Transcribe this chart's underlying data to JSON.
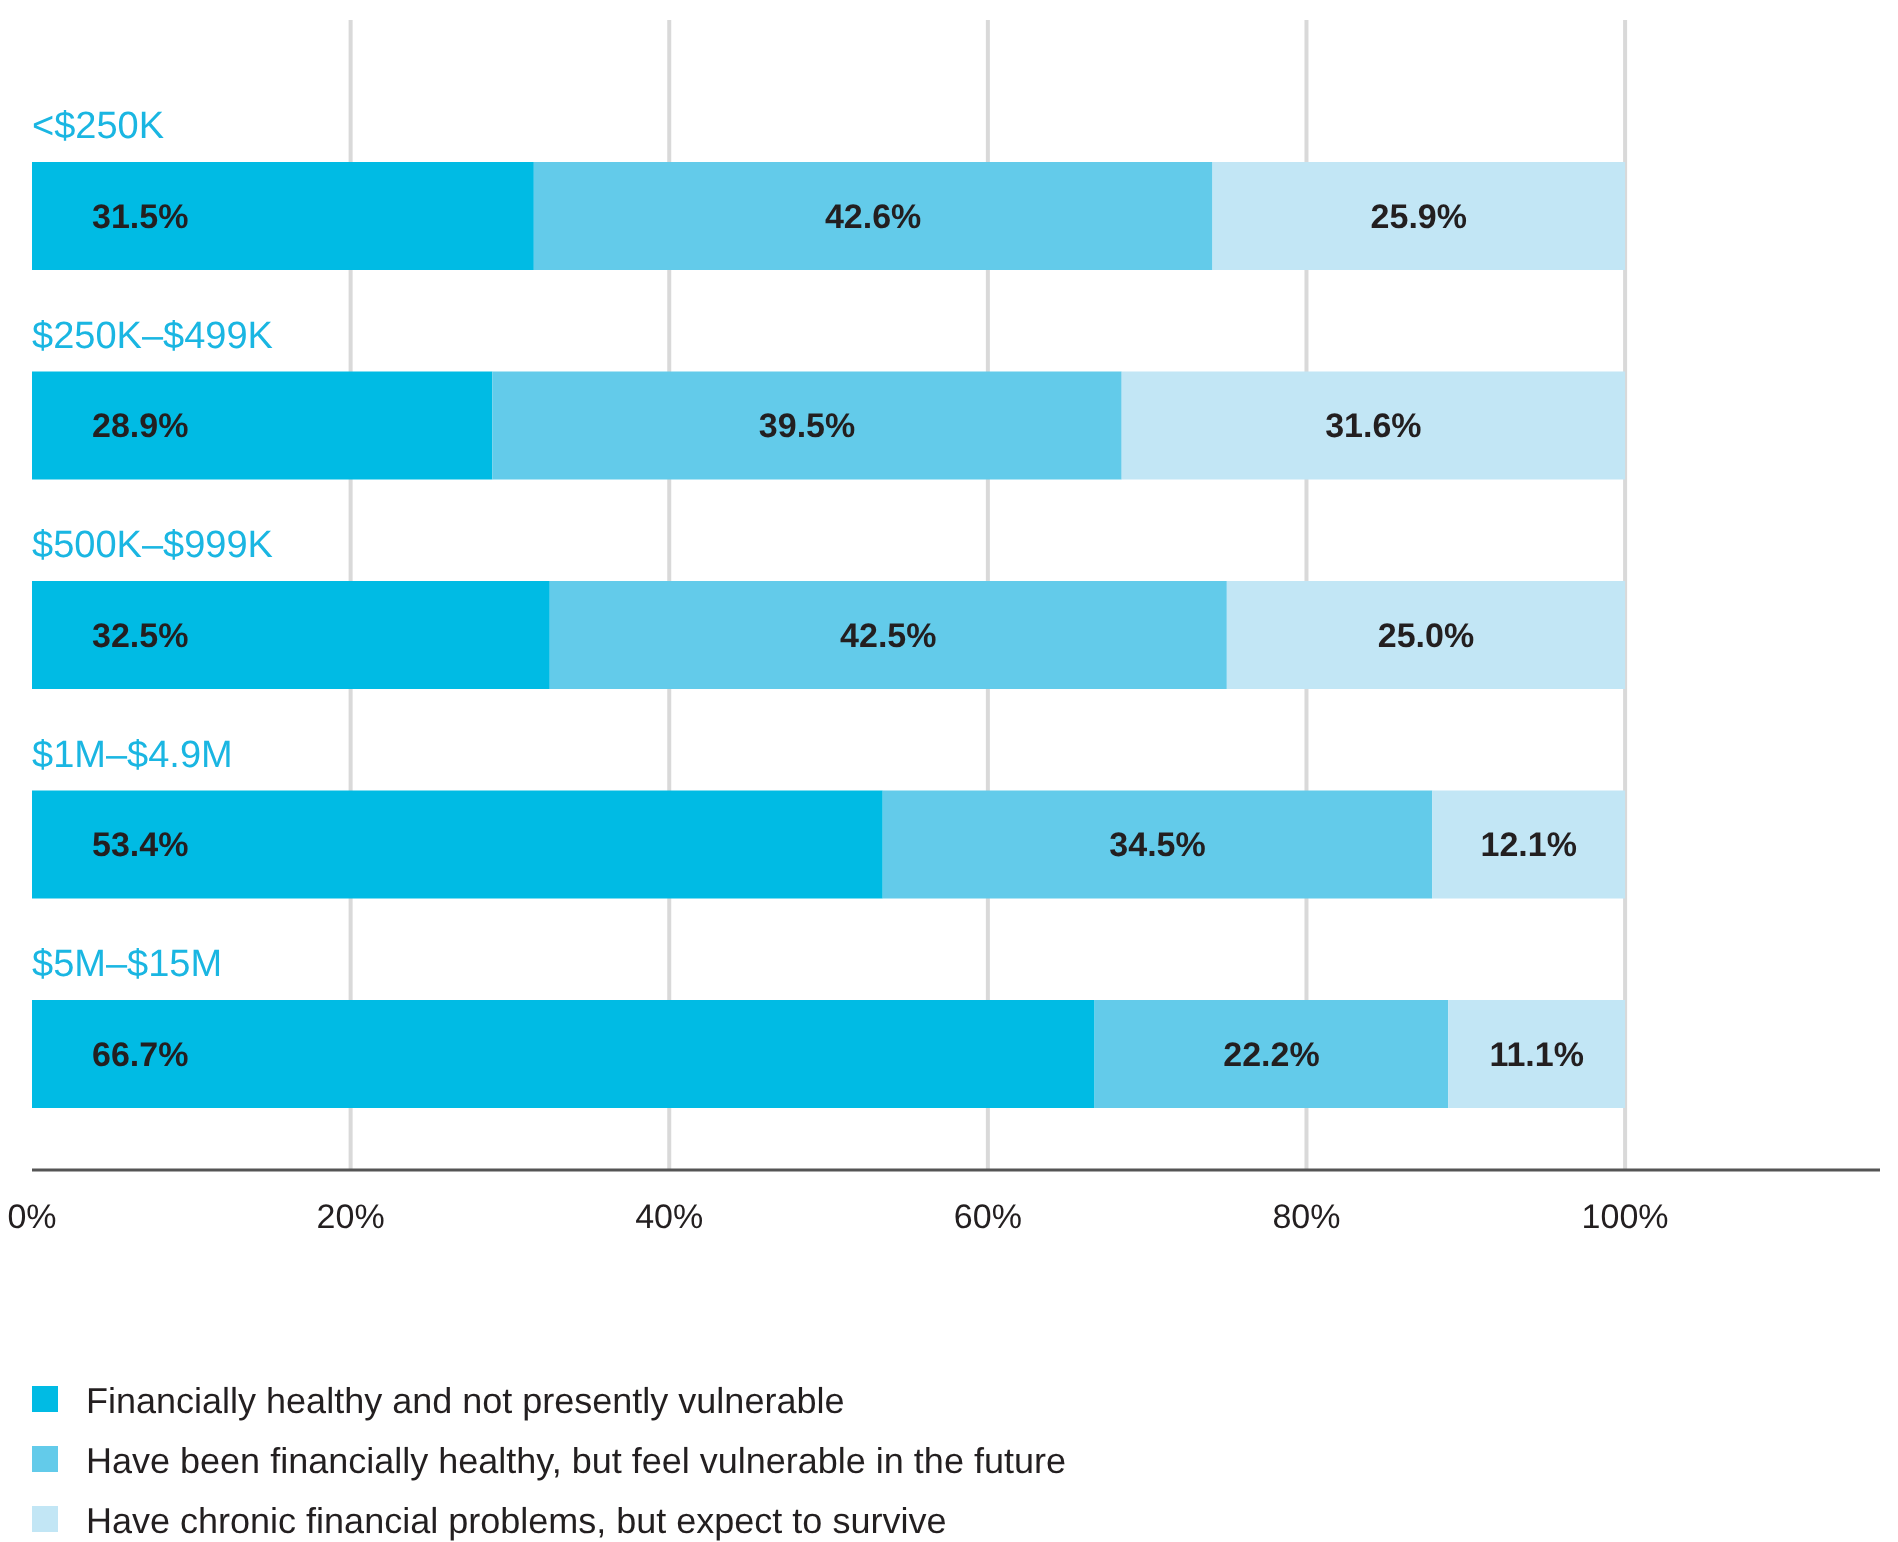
{
  "chart_data": {
    "type": "bar",
    "orientation": "horizontal",
    "stacked": true,
    "categories": [
      "<$250K",
      "$250K–$499K",
      "$500K–$999K",
      "$1M–$4.9M",
      "$5M–$15M"
    ],
    "series": [
      {
        "name": "Financially healthy and not presently vulnerable",
        "color": "#00bbe4",
        "values": [
          31.5,
          28.9,
          32.5,
          53.4,
          66.7
        ],
        "value_labels": [
          "31.5%",
          "28.9%",
          "32.5%",
          "53.4%",
          "66.7%"
        ]
      },
      {
        "name": "Have been financially healthy, but feel vulnerable in the future",
        "color": "#63cbea",
        "values": [
          42.6,
          39.5,
          42.5,
          34.5,
          22.2
        ],
        "value_labels": [
          "42.6%",
          "39.5%",
          "42.5%",
          "34.5%",
          "22.2%"
        ]
      },
      {
        "name": "Have chronic financial problems, but expect to survive",
        "color": "#c2e6f5",
        "values": [
          25.9,
          31.6,
          25.0,
          12.1,
          11.1
        ],
        "value_labels": [
          "25.9%",
          "31.6%",
          "25.0%",
          "12.1%",
          "11.1%"
        ]
      }
    ],
    "xlim": [
      0,
      116
    ],
    "xticks": [
      {
        "value": 0,
        "label": "0%"
      },
      {
        "value": 20,
        "label": "20%"
      },
      {
        "value": 40,
        "label": "40%"
      },
      {
        "value": 60,
        "label": "60%"
      },
      {
        "value": 80,
        "label": "80%"
      },
      {
        "value": 100,
        "label": "100%"
      }
    ],
    "grid": "x",
    "legend": "bottom left"
  }
}
